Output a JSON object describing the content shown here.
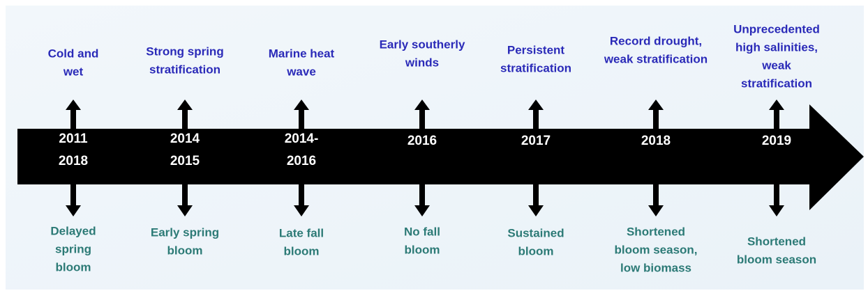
{
  "items": [
    {
      "top": [
        "Cold and",
        "wet"
      ],
      "year": [
        "2011",
        "2018"
      ],
      "bottom": [
        "Delayed",
        "spring",
        "bloom"
      ]
    },
    {
      "top": [
        "Strong spring",
        "stratification"
      ],
      "year": [
        "2014",
        "2015"
      ],
      "bottom": [
        "Early spring",
        "bloom"
      ]
    },
    {
      "top": [
        "Marine heat",
        "wave"
      ],
      "year": [
        "2014-",
        "2016"
      ],
      "bottom": [
        "Late fall",
        "bloom"
      ]
    },
    {
      "top": [
        "Early southerly",
        "winds"
      ],
      "year": [
        "2016"
      ],
      "bottom": [
        "No fall",
        "bloom"
      ]
    },
    {
      "top": [
        "Persistent",
        "stratification"
      ],
      "year": [
        "2017"
      ],
      "bottom": [
        "Sustained",
        "bloom"
      ]
    },
    {
      "top": [
        "Record drought,",
        "weak stratification"
      ],
      "year": [
        "2018"
      ],
      "bottom": [
        "Shortened",
        "bloom season,",
        "low biomass"
      ]
    },
    {
      "top": [
        "Unprecedented",
        "high salinities,",
        "weak",
        "stratification"
      ],
      "year": [
        "2019"
      ],
      "bottom": [
        "Shortened",
        "bloom season"
      ]
    }
  ]
}
